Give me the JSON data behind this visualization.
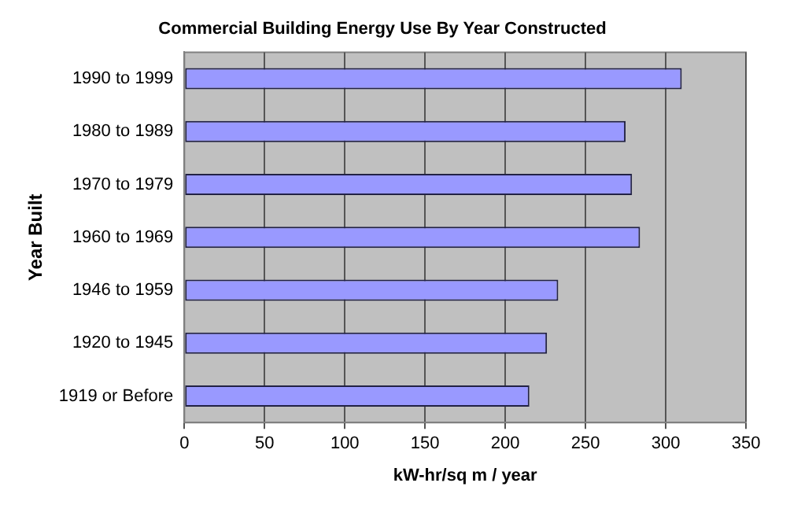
{
  "chart_data": {
    "type": "bar",
    "orientation": "horizontal",
    "title": "Commercial Building Energy Use By Year Constructed",
    "xlabel": "kW-hr/sq m / year",
    "ylabel": "Year Built",
    "categories": [
      "1990 to 1999",
      "1980 to 1989",
      "1970 to 1979",
      "1960 to 1969",
      "1946 to 1959",
      "1920 to 1945",
      "1919 or Before"
    ],
    "values": [
      310,
      275,
      279,
      284,
      233,
      226,
      215
    ],
    "color": "#9999ff",
    "xlim": [
      0,
      350
    ],
    "xticks": [
      0,
      50,
      100,
      150,
      200,
      250,
      300,
      350
    ],
    "grid": "x",
    "legend": false
  }
}
